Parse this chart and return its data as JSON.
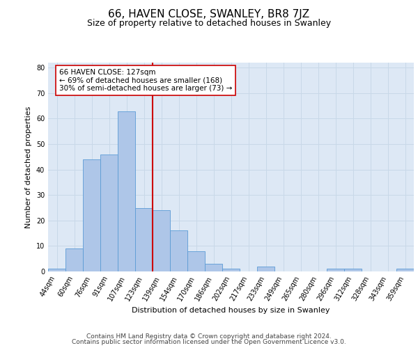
{
  "title": "66, HAVEN CLOSE, SWANLEY, BR8 7JZ",
  "subtitle": "Size of property relative to detached houses in Swanley",
  "xlabel": "Distribution of detached houses by size in Swanley",
  "ylabel": "Number of detached properties",
  "categories": [
    "44sqm",
    "60sqm",
    "76sqm",
    "91sqm",
    "107sqm",
    "123sqm",
    "139sqm",
    "154sqm",
    "170sqm",
    "186sqm",
    "202sqm",
    "217sqm",
    "233sqm",
    "249sqm",
    "265sqm",
    "280sqm",
    "296sqm",
    "312sqm",
    "328sqm",
    "343sqm",
    "359sqm"
  ],
  "values": [
    1,
    9,
    44,
    46,
    63,
    25,
    24,
    16,
    8,
    3,
    1,
    0,
    2,
    0,
    0,
    0,
    1,
    1,
    0,
    0,
    1
  ],
  "bar_color": "#aec6e8",
  "bar_edge_color": "#5b9bd5",
  "grid_color": "#c8d8e8",
  "bg_color": "#dde8f5",
  "vline_color": "#cc0000",
  "vline_x": 5.5,
  "annotation_text": "66 HAVEN CLOSE: 127sqm\n← 69% of detached houses are smaller (168)\n30% of semi-detached houses are larger (73) →",
  "annotation_box_color": "#ffffff",
  "annotation_box_edge": "#cc0000",
  "ylim": [
    0,
    82
  ],
  "yticks": [
    0,
    10,
    20,
    30,
    40,
    50,
    60,
    70,
    80
  ],
  "footer1": "Contains HM Land Registry data © Crown copyright and database right 2024.",
  "footer2": "Contains public sector information licensed under the Open Government Licence v3.0.",
  "title_fontsize": 11,
  "subtitle_fontsize": 9,
  "label_fontsize": 8,
  "tick_fontsize": 7,
  "footer_fontsize": 6.5,
  "annotation_fontsize": 7.5
}
